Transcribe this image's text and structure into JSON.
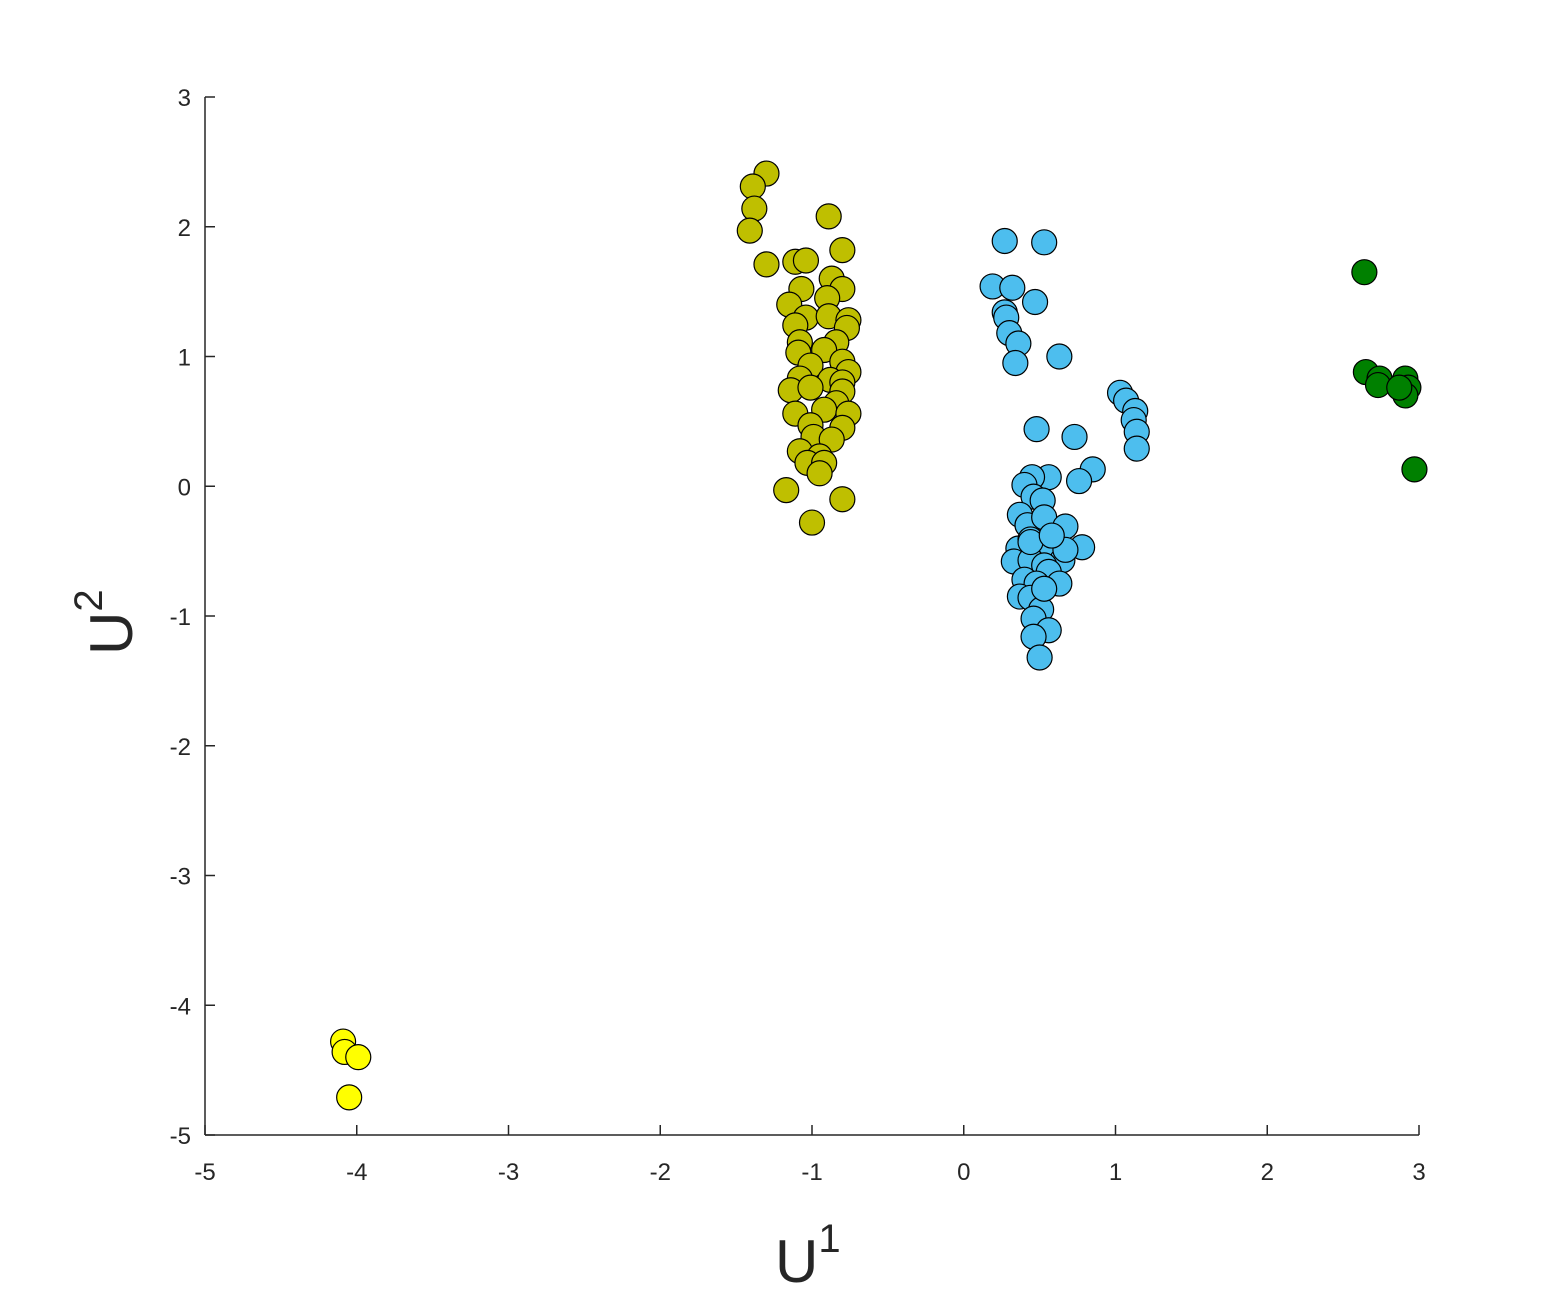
{
  "chart_data": {
    "type": "scatter",
    "x_label": {
      "base": "U",
      "sup": "1"
    },
    "y_label": {
      "base": "U",
      "sup": "2"
    },
    "xlim": [
      -5,
      3
    ],
    "ylim": [
      -5,
      3
    ],
    "xticks": [
      -5,
      -4,
      -3,
      -2,
      -1,
      0,
      1,
      2,
      3
    ],
    "yticks": [
      -5,
      -4,
      -3,
      -2,
      -1,
      0,
      1,
      2,
      3
    ],
    "series": [
      {
        "color": "#bfbf00",
        "x": [
          -1.3,
          -1.39,
          -1.38,
          -1.41,
          -0.89,
          -0.8,
          -1.3,
          -1.11,
          -1.04,
          -0.87,
          -0.8,
          -1.07,
          -0.9,
          -1.15,
          -1.04,
          -0.89,
          -0.76,
          -0.77,
          -1.11,
          -1.08,
          -0.84,
          -0.92,
          -1.09,
          -0.8,
          -1.01,
          -0.76,
          -0.88,
          -1.08,
          -0.8,
          -1.14,
          -1.01,
          -0.8,
          -0.84,
          -0.92,
          -1.11,
          -0.76,
          -0.8,
          -1.01,
          -0.99,
          -0.87,
          -1.08,
          -0.95,
          -1.03,
          -0.92,
          -0.95,
          -1.17,
          -0.8,
          -1.0
        ],
        "y": [
          2.41,
          2.31,
          2.14,
          1.97,
          2.08,
          1.82,
          1.71,
          1.73,
          1.74,
          1.6,
          1.52,
          1.52,
          1.45,
          1.4,
          1.3,
          1.31,
          1.28,
          1.22,
          1.24,
          1.11,
          1.11,
          1.05,
          1.03,
          0.96,
          0.93,
          0.88,
          0.82,
          0.83,
          0.8,
          0.74,
          0.76,
          0.73,
          0.64,
          0.59,
          0.56,
          0.56,
          0.45,
          0.47,
          0.38,
          0.36,
          0.27,
          0.23,
          0.18,
          0.18,
          0.1,
          -0.03,
          -0.1,
          -0.28
        ]
      },
      {
        "color": "#4dbeee",
        "x": [
          0.27,
          0.53,
          0.19,
          0.32,
          0.47,
          0.27,
          0.28,
          0.3,
          0.36,
          0.34,
          0.63,
          1.03,
          1.07,
          1.13,
          1.12,
          1.14,
          1.14,
          0.48,
          0.73,
          0.85,
          0.76,
          0.56,
          0.45,
          0.4,
          0.46,
          0.52,
          0.37,
          0.42,
          0.53,
          0.67,
          0.78,
          0.36,
          0.44,
          0.57,
          0.33,
          0.65,
          0.44,
          0.53,
          0.4,
          0.56,
          0.63,
          0.48,
          0.37,
          0.44,
          0.51,
          0.46,
          0.56,
          0.46,
          0.5,
          0.53,
          0.67,
          0.44,
          0.58
        ],
        "y": [
          1.89,
          1.88,
          1.54,
          1.53,
          1.42,
          1.34,
          1.3,
          1.18,
          1.1,
          0.95,
          1.0,
          0.72,
          0.66,
          0.58,
          0.51,
          0.42,
          0.29,
          0.44,
          0.38,
          0.13,
          0.04,
          0.07,
          0.07,
          0.01,
          -0.08,
          -0.11,
          -0.22,
          -0.3,
          -0.24,
          -0.31,
          -0.47,
          -0.48,
          -0.41,
          -0.45,
          -0.58,
          -0.57,
          -0.57,
          -0.61,
          -0.72,
          -0.66,
          -0.75,
          -0.75,
          -0.85,
          -0.86,
          -0.95,
          -1.02,
          -1.11,
          -1.16,
          -1.32,
          -0.79,
          -0.49,
          -0.43,
          -0.38
        ]
      },
      {
        "color": "#008000",
        "x": [
          2.64,
          2.65,
          2.74,
          2.73,
          2.91,
          2.93,
          2.91,
          2.97,
          2.87
        ],
        "y": [
          1.65,
          0.88,
          0.83,
          0.78,
          0.83,
          0.76,
          0.7,
          0.13,
          0.76
        ]
      },
      {
        "color": "#ffff00",
        "x": [
          -4.09,
          -4.08,
          -3.99,
          -4.05
        ],
        "y": [
          -4.28,
          -4.36,
          -4.4,
          -4.71
        ]
      }
    ]
  }
}
